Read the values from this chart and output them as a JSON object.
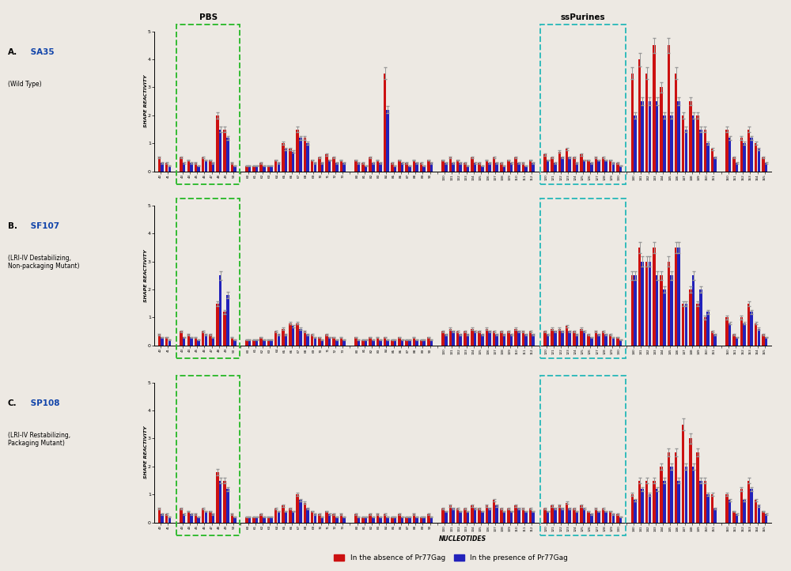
{
  "panels": [
    {
      "label_A": "A.",
      "label_B": " SA35",
      "label2": "(Wild Type)",
      "label_color": "#1144AA",
      "ylim": [
        0,
        5
      ],
      "yticks": [
        0,
        1,
        2,
        3,
        4,
        5
      ],
      "pbs_label": "PBS",
      "sspurines_label": "ssPurines"
    },
    {
      "label_A": "B.",
      "label_B": " SF107",
      "label2": "(LRI-IV Destabilizing,\nNon-packaging Mutant)",
      "label_color": "#1144AA",
      "ylim": [
        0,
        5
      ],
      "yticks": [
        0,
        1,
        2,
        3,
        4,
        5
      ],
      "pbs_label": "",
      "sspurines_label": ""
    },
    {
      "label_A": "C.",
      "label_B": " SP108",
      "label2": "(LRI-IV Restabilizing,\nPackaging Mutant)",
      "label_color": "#1144AA",
      "ylim": [
        0,
        5
      ],
      "yticks": [
        0,
        1,
        2,
        3,
        4,
        5
      ],
      "pbs_label": "",
      "sspurines_label": ""
    }
  ],
  "xlabels": [
    "40",
    "41",
    "",
    "43",
    "44",
    "45",
    "46",
    "47",
    "48",
    "49",
    "50",
    "",
    "60",
    "61",
    "62",
    "63",
    "64",
    "65",
    "66",
    "67",
    "68",
    "69",
    "70",
    "71",
    "72",
    "73",
    "",
    "80",
    "81",
    "82",
    "83",
    "84",
    "85",
    "86",
    "87",
    "88",
    "89",
    "90",
    "",
    "100",
    "101",
    "102",
    "103",
    "104",
    "105",
    "106",
    "107",
    "108",
    "109",
    "110",
    "111",
    "112",
    "",
    "120",
    "121",
    "122",
    "123",
    "124",
    "125",
    "126",
    "127",
    "128",
    "129",
    "130",
    "",
    "140",
    "141",
    "142",
    "143",
    "144",
    "145",
    "146",
    "147",
    "148",
    "149",
    "150",
    "151",
    "",
    "160",
    "161",
    "162",
    "163",
    "164",
    "165"
  ],
  "n_groups": 6,
  "group_sizes": [
    11,
    14,
    11,
    13,
    12,
    13
  ],
  "gap_after": [
    true,
    true,
    true,
    true,
    true,
    false
  ],
  "pbs_group": 1,
  "ss_group": 5,
  "panel_A_red": [
    0.5,
    0.3,
    0.0,
    0.5,
    0.4,
    0.3,
    0.5,
    0.4,
    2.0,
    1.5,
    0.3,
    0.0,
    0.2,
    0.2,
    0.3,
    0.2,
    0.4,
    1.0,
    0.8,
    1.5,
    1.2,
    0.4,
    0.5,
    0.6,
    0.5,
    0.4,
    0.0,
    0.4,
    0.3,
    0.5,
    0.4,
    3.5,
    0.3,
    0.4,
    0.3,
    0.4,
    0.3,
    0.4,
    0.0,
    0.4,
    0.5,
    0.4,
    0.3,
    0.5,
    0.3,
    0.4,
    0.5,
    0.3,
    0.4,
    0.5,
    0.3,
    0.4,
    0.0,
    0.6,
    0.5,
    0.7,
    0.8,
    0.5,
    0.6,
    0.4,
    0.5,
    0.5,
    0.4,
    0.3,
    0.0,
    3.5,
    4.0,
    3.5,
    4.5,
    3.0,
    4.5,
    3.5,
    2.0,
    2.5,
    2.0,
    1.5,
    0.8,
    0.0,
    1.5,
    0.5,
    1.2,
    1.5,
    1.0,
    0.5
  ],
  "panel_A_blue": [
    0.3,
    0.2,
    0.0,
    0.3,
    0.3,
    0.2,
    0.4,
    0.3,
    1.5,
    1.2,
    0.2,
    0.0,
    0.2,
    0.2,
    0.2,
    0.2,
    0.3,
    0.8,
    0.7,
    1.2,
    1.0,
    0.3,
    0.3,
    0.4,
    0.3,
    0.3,
    0.0,
    0.3,
    0.2,
    0.3,
    0.3,
    2.2,
    0.2,
    0.3,
    0.2,
    0.3,
    0.2,
    0.3,
    0.0,
    0.3,
    0.3,
    0.3,
    0.2,
    0.3,
    0.2,
    0.3,
    0.3,
    0.2,
    0.3,
    0.3,
    0.2,
    0.3,
    0.0,
    0.4,
    0.3,
    0.5,
    0.5,
    0.3,
    0.4,
    0.3,
    0.4,
    0.4,
    0.3,
    0.2,
    0.0,
    2.0,
    2.5,
    2.5,
    2.5,
    2.0,
    2.0,
    2.5,
    1.5,
    2.0,
    1.5,
    1.0,
    0.5,
    0.0,
    1.2,
    0.3,
    1.0,
    1.2,
    0.8,
    0.3
  ],
  "panel_B_red": [
    0.4,
    0.3,
    0.0,
    0.5,
    0.4,
    0.3,
    0.5,
    0.4,
    1.5,
    1.2,
    0.3,
    0.0,
    0.2,
    0.2,
    0.3,
    0.2,
    0.5,
    0.6,
    0.8,
    0.8,
    0.5,
    0.4,
    0.3,
    0.4,
    0.3,
    0.3,
    0.0,
    0.3,
    0.2,
    0.3,
    0.3,
    0.3,
    0.2,
    0.3,
    0.2,
    0.3,
    0.2,
    0.3,
    0.0,
    0.5,
    0.6,
    0.5,
    0.5,
    0.6,
    0.5,
    0.6,
    0.5,
    0.5,
    0.5,
    0.6,
    0.5,
    0.5,
    0.0,
    0.5,
    0.6,
    0.6,
    0.7,
    0.5,
    0.6,
    0.4,
    0.5,
    0.5,
    0.4,
    0.3,
    0.0,
    2.5,
    3.5,
    3.0,
    3.5,
    2.5,
    3.0,
    3.5,
    1.5,
    2.0,
    1.5,
    1.0,
    0.5,
    0.0,
    1.0,
    0.4,
    1.0,
    1.5,
    0.8,
    0.4
  ],
  "panel_B_blue": [
    0.3,
    0.2,
    0.0,
    0.3,
    0.3,
    0.2,
    0.4,
    0.3,
    2.5,
    1.8,
    0.2,
    0.0,
    0.2,
    0.2,
    0.2,
    0.2,
    0.4,
    0.4,
    0.7,
    0.6,
    0.4,
    0.3,
    0.2,
    0.3,
    0.2,
    0.2,
    0.0,
    0.2,
    0.2,
    0.2,
    0.2,
    0.2,
    0.2,
    0.2,
    0.2,
    0.2,
    0.2,
    0.2,
    0.0,
    0.4,
    0.5,
    0.4,
    0.4,
    0.5,
    0.4,
    0.5,
    0.4,
    0.4,
    0.4,
    0.5,
    0.4,
    0.4,
    0.0,
    0.4,
    0.5,
    0.5,
    0.5,
    0.4,
    0.5,
    0.3,
    0.4,
    0.4,
    0.3,
    0.2,
    0.0,
    2.5,
    3.0,
    3.0,
    2.5,
    2.0,
    2.5,
    3.5,
    1.5,
    2.5,
    2.0,
    1.2,
    0.4,
    0.0,
    0.8,
    0.3,
    0.8,
    1.2,
    0.6,
    0.3
  ],
  "panel_C_red": [
    0.5,
    0.3,
    0.0,
    0.5,
    0.4,
    0.3,
    0.5,
    0.4,
    1.8,
    1.5,
    0.3,
    0.0,
    0.2,
    0.2,
    0.3,
    0.2,
    0.5,
    0.6,
    0.5,
    1.0,
    0.7,
    0.4,
    0.3,
    0.4,
    0.3,
    0.3,
    0.0,
    0.3,
    0.2,
    0.3,
    0.3,
    0.3,
    0.2,
    0.3,
    0.2,
    0.3,
    0.2,
    0.3,
    0.0,
    0.5,
    0.6,
    0.5,
    0.5,
    0.6,
    0.5,
    0.6,
    0.8,
    0.5,
    0.5,
    0.6,
    0.5,
    0.5,
    0.0,
    0.5,
    0.6,
    0.6,
    0.7,
    0.5,
    0.6,
    0.4,
    0.5,
    0.5,
    0.4,
    0.3,
    0.0,
    1.0,
    1.5,
    1.5,
    1.5,
    2.0,
    2.5,
    2.5,
    3.5,
    3.0,
    2.5,
    1.5,
    1.0,
    0.0,
    1.0,
    0.4,
    1.2,
    1.5,
    0.8,
    0.4
  ],
  "panel_C_blue": [
    0.3,
    0.2,
    0.0,
    0.3,
    0.3,
    0.2,
    0.4,
    0.3,
    1.5,
    1.2,
    0.2,
    0.0,
    0.2,
    0.2,
    0.2,
    0.2,
    0.4,
    0.4,
    0.4,
    0.8,
    0.5,
    0.3,
    0.2,
    0.3,
    0.2,
    0.2,
    0.0,
    0.2,
    0.2,
    0.2,
    0.2,
    0.2,
    0.2,
    0.2,
    0.2,
    0.2,
    0.2,
    0.2,
    0.0,
    0.4,
    0.5,
    0.4,
    0.4,
    0.5,
    0.4,
    0.5,
    0.6,
    0.4,
    0.4,
    0.5,
    0.4,
    0.4,
    0.0,
    0.4,
    0.5,
    0.5,
    0.5,
    0.4,
    0.5,
    0.3,
    0.4,
    0.4,
    0.3,
    0.2,
    0.0,
    0.8,
    1.2,
    1.0,
    1.2,
    1.5,
    2.0,
    1.5,
    2.0,
    2.0,
    1.5,
    1.0,
    0.5,
    0.0,
    0.8,
    0.3,
    0.8,
    1.2,
    0.6,
    0.3
  ],
  "red_color": "#CC1111",
  "blue_color": "#2222BB",
  "bg_color": "#EDE9E3",
  "pbs_green": "#33BB33",
  "sspurines_cyan": "#33BBBB",
  "xlabel": "NUCLEOTIDES",
  "ylabel": "SHAPE REACTIVITY",
  "legend_red": "In the absence of Pr77Gag",
  "legend_blue": "In the presence of Pr77Gag"
}
